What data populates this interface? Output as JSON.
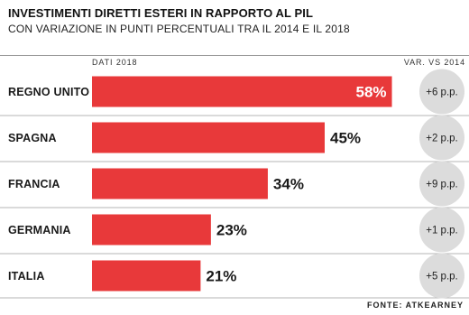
{
  "header": {
    "title": "INVESTIMENTI DIRETTI ESTERI IN RAPPORTO AL PIL",
    "subtitle": "CON VARIAZIONE IN PUNTI PERCENTUALI TRA IL 2014 E IL 2018",
    "col_left": "DATI 2018",
    "col_right": "VAR. VS 2014"
  },
  "source": "FONTE: ATKEARNEY",
  "colors": {
    "bar": "#e8393a",
    "circle": "#dcdcdc"
  },
  "chart_data": {
    "type": "bar",
    "orientation": "horizontal",
    "title": "INVESTIMENTI DIRETTI ESTERI IN RAPPORTO AL PIL",
    "subtitle": "CON VARIAZIONE IN PUNTI PERCENTUALI TRA IL 2014 E IL 2018",
    "categories": [
      "REGNO UNITO",
      "SPAGNA",
      "FRANCIA",
      "GERMANIA",
      "ITALIA"
    ],
    "values": [
      58,
      45,
      34,
      23,
      21
    ],
    "value_labels": [
      "58%",
      "45%",
      "34%",
      "23%",
      "21%"
    ],
    "change_labels": [
      "+6 p.p.",
      "+2 p.p.",
      "+9 p.p.",
      "+1 p.p.",
      "+5 p.p."
    ],
    "xlim": [
      0,
      60
    ],
    "grid": false
  }
}
